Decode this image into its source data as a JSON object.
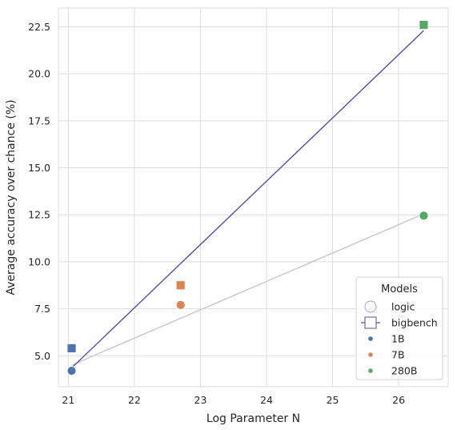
{
  "chart_data": {
    "type": "scatter",
    "xlabel": "Log Parameter N",
    "ylabel": "Average accuracy over chance (%)",
    "xlim": [
      20.85,
      26.75
    ],
    "ylim": [
      3.35,
      23.5
    ],
    "xticks": [
      21,
      22,
      23,
      24,
      25,
      26
    ],
    "yticks": [
      5.0,
      7.5,
      10.0,
      12.5,
      15.0,
      17.5,
      20.0,
      22.5
    ],
    "grid": true,
    "legend": {
      "title": "Models",
      "placement": "bottom-right",
      "entries": [
        {
          "label": "logic",
          "marker": "circle-open"
        },
        {
          "label": "bigbench",
          "marker": "square-open"
        },
        {
          "label": "1B",
          "marker": "dot",
          "color": "#4c72b0"
        },
        {
          "label": "7B",
          "marker": "dot",
          "color": "#dd8452"
        },
        {
          "label": "280B",
          "marker": "dot",
          "color": "#55a868"
        }
      ]
    },
    "series": [
      {
        "name": "logic",
        "marker": "circle",
        "points": [
          {
            "model": "1B",
            "x": 21.05,
            "y": 4.2
          },
          {
            "model": "7B",
            "x": 22.7,
            "y": 7.7
          },
          {
            "model": "280B",
            "x": 26.38,
            "y": 12.45
          }
        ],
        "fit": {
          "x": [
            21.05,
            26.38
          ],
          "y": [
            4.5,
            12.55
          ],
          "color": "#c9c3d4"
        }
      },
      {
        "name": "bigbench",
        "marker": "square",
        "points": [
          {
            "model": "1B",
            "x": 21.05,
            "y": 5.4
          },
          {
            "model": "7B",
            "x": 22.7,
            "y": 8.75
          },
          {
            "model": "280B",
            "x": 26.38,
            "y": 22.6
          }
        ],
        "fit": {
          "x": [
            21.05,
            26.38
          ],
          "y": [
            4.35,
            22.3
          ],
          "color": "#5a4ea6"
        }
      }
    ],
    "colors": {
      "1B": "#4c72b0",
      "7B": "#dd8452",
      "280B": "#55a868"
    }
  }
}
